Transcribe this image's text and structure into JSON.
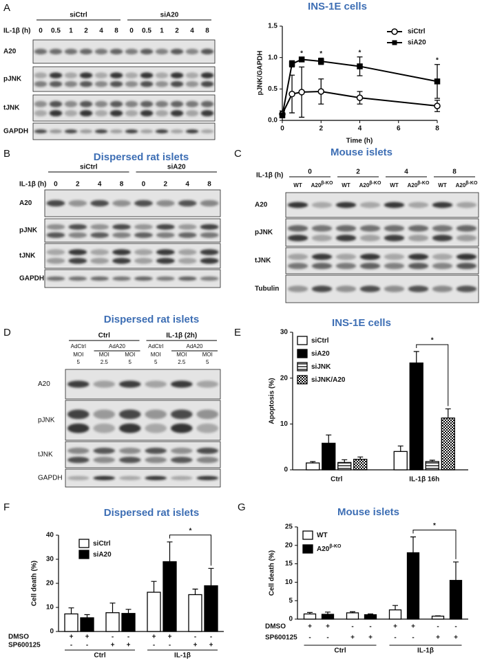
{
  "panel_letters": [
    "A",
    "B",
    "C",
    "D",
    "E",
    "F",
    "G"
  ],
  "blots": [
    {
      "title": "INS-1E cells",
      "treatment_label": "IL-1β (h)",
      "groups": [
        "siCtrl",
        "siA20"
      ],
      "lanes": [
        "0",
        "0.5",
        "1",
        "2",
        "4",
        "8",
        "0",
        "0.5",
        "1",
        "2",
        "4",
        "8"
      ],
      "rows": [
        "A20",
        "pJNK",
        "tJNK",
        "GAPDH"
      ]
    },
    {
      "title": "Dispersed rat islets",
      "treatment_label": "IL-1β (h)",
      "groups": [
        "siCtrl",
        "siA20"
      ],
      "lanes": [
        "0",
        "2",
        "4",
        "8",
        "0",
        "2",
        "4",
        "8"
      ],
      "rows": [
        "A20",
        "pJNK",
        "tJNK",
        "GAPDH"
      ]
    },
    {
      "title": "Mouse islets",
      "treatment_label": "IL-1β (h)",
      "groups": [
        "0",
        "2",
        "4",
        "8"
      ],
      "lanes": [
        {
          "text": "WT"
        },
        {
          "text": "A20",
          "sup": "β-KO"
        },
        {
          "text": "WT"
        },
        {
          "text": "A20",
          "sup": "β-KO"
        },
        {
          "text": "WT"
        },
        {
          "text": "A20",
          "sup": "β-KO"
        },
        {
          "text": "WT"
        },
        {
          "text": "A20",
          "sup": "β-KO"
        }
      ],
      "rows": [
        "A20",
        "pJNK",
        "tJNK",
        "Tubulin"
      ]
    },
    {
      "title": "Dispersed rat islets",
      "groups": [
        "Ctrl",
        "IL-1β (2h)"
      ],
      "subgroups": [
        "AdCtrl",
        "AdA20",
        "AdCtrl",
        "AdA20"
      ],
      "lane_header": "MOI",
      "lanes": [
        "5",
        "2.5",
        "5",
        "5",
        "2.5",
        "5"
      ],
      "rows": [
        "A20",
        "pJNK",
        "tJNK",
        "GAPDH"
      ]
    }
  ],
  "chart_data": [
    {
      "type": "line",
      "ylabel": "pJNK/GAPDH",
      "xlabel": "Time (h)",
      "x": [
        0,
        0.5,
        1,
        2,
        4,
        8
      ],
      "series": [
        {
          "name": "siCtrl",
          "color": "#000000",
          "marker": "open",
          "values": [
            0.1,
            0.42,
            0.45,
            0.46,
            0.36,
            0.23
          ],
          "errors": [
            0.05,
            0.3,
            0.4,
            0.2,
            0.1,
            0.09
          ]
        },
        {
          "name": "siA20",
          "color": "#000000",
          "marker": "filled",
          "values": [
            0.08,
            0.9,
            0.97,
            0.94,
            0.86,
            0.62
          ],
          "errors": [
            0.03,
            0.05,
            0.03,
            0.05,
            0.15,
            0.27
          ]
        }
      ],
      "xlim": [
        0,
        8
      ],
      "ylim": [
        0,
        1.5
      ],
      "xticks": [
        0,
        2,
        4,
        6,
        8
      ],
      "yticks": [
        {
          "value": 0,
          "label": "0.0"
        },
        {
          "value": 0.5,
          "label": "0.5"
        },
        {
          "value": 1,
          "label": "1.0"
        },
        {
          "value": 1.5,
          "label": "1.5"
        }
      ],
      "legend": "upper right",
      "annotations": [
        {
          "x": 1,
          "text": "*"
        },
        {
          "x": 2,
          "text": "*"
        },
        {
          "x": 4,
          "text": "*"
        },
        {
          "x": 8,
          "text": "*"
        }
      ]
    },
    {
      "type": "bar",
      "title": "INS-1E cells",
      "ylabel": "Apoptosis (%)",
      "categories": [
        "Ctrl",
        "IL-1β 16h"
      ],
      "series": [
        {
          "name": "siCtrl",
          "fill": "white",
          "values": [
            1.5,
            4
          ],
          "errors": [
            0.3,
            1.2
          ]
        },
        {
          "name": "siA20",
          "fill": "black",
          "values": [
            5.8,
            23.3
          ],
          "errors": [
            1.8,
            2.5
          ]
        },
        {
          "name": "siJNK",
          "fill": "stripes",
          "values": [
            1.6,
            1.8
          ],
          "errors": [
            0.6,
            0.3
          ]
        },
        {
          "name": "siJNK/A20",
          "fill": "checker",
          "values": [
            2.3,
            11.3
          ],
          "errors": [
            0.5,
            2
          ]
        }
      ],
      "ylim": [
        0,
        30
      ],
      "yticks": [
        0,
        10,
        20,
        30
      ],
      "legend": "upper left",
      "significance": [
        {
          "text": "*"
        }
      ]
    },
    {
      "type": "bar",
      "title": "Dispersed rat islets",
      "ylabel": "Cell death (%)",
      "categories": [
        null,
        null,
        null,
        null
      ],
      "series": [
        {
          "name": "siCtrl",
          "fill": "white",
          "values": [
            7.3,
            7.8,
            16.3,
            15.3
          ],
          "errors": [
            2.5,
            4,
            4.5,
            2.3
          ]
        },
        {
          "name": "siA20",
          "fill": "black",
          "values": [
            5.7,
            7.5,
            29,
            19
          ],
          "errors": [
            1.3,
            1.7,
            8.2,
            7.2
          ]
        }
      ],
      "ylim": [
        0,
        40
      ],
      "yticks": [
        0,
        10,
        20,
        30,
        40
      ],
      "legend": "upper left",
      "treatments": [
        {
          "name": "DMSO",
          "marks": [
            "+",
            "+",
            "-",
            "-",
            "+",
            "+",
            "-",
            "-"
          ]
        },
        {
          "name": "SP600125",
          "marks": [
            "-",
            "-",
            "+",
            "+",
            "-",
            "-",
            "+",
            "+"
          ]
        }
      ],
      "conditions": [
        "Ctrl",
        "IL-1β"
      ],
      "significance": [
        {
          "text": "*"
        }
      ]
    },
    {
      "type": "bar",
      "title": "Mouse islets",
      "ylabel": "Cell death (%)",
      "categories": [
        null,
        null,
        null,
        null
      ],
      "series": [
        {
          "name": "WT",
          "fill": "white",
          "values": [
            1.4,
            1.7,
            2.5,
            0.8
          ],
          "errors": [
            0.4,
            0.3,
            1.2,
            0.1
          ]
        },
        {
          "name": "A20",
          "name_sup": "β-KO",
          "fill": "black",
          "values": [
            1.3,
            1.2,
            18,
            10.5
          ],
          "errors": [
            0.6,
            0.2,
            4.3,
            5
          ]
        }
      ],
      "ylim": [
        0,
        25
      ],
      "yticks": [
        0,
        5,
        10,
        15,
        20,
        25
      ],
      "legend": "upper left",
      "treatments": [
        {
          "name": "DMSO",
          "marks": [
            "+",
            "+",
            "-",
            "-",
            "+",
            "+",
            "-",
            "-"
          ]
        },
        {
          "name": "SP600125",
          "marks": [
            "-",
            "-",
            "+",
            "+",
            "-",
            "-",
            "+",
            "+"
          ]
        }
      ],
      "conditions": [
        "Ctrl",
        "IL-1β"
      ],
      "significance": [
        {
          "text": "*"
        }
      ]
    }
  ]
}
